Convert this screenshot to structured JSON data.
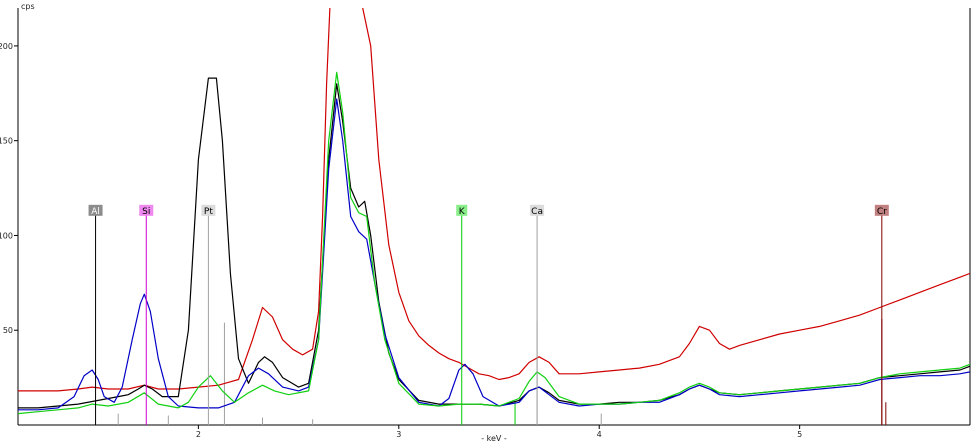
{
  "chart_data": {
    "type": "line",
    "title": "",
    "xlabel": "- keV -",
    "ylabel": "cps",
    "xlim": [
      1.1,
      5.85
    ],
    "ylim": [
      0,
      220
    ],
    "x_ticks": [
      2,
      3,
      4,
      5
    ],
    "y_ticks": [
      50,
      100,
      150,
      200
    ],
    "grid": false,
    "series": [
      {
        "color": "#d00000",
        "points": [
          [
            1.1,
            18
          ],
          [
            1.2,
            18
          ],
          [
            1.3,
            18
          ],
          [
            1.4,
            19
          ],
          [
            1.47,
            20
          ],
          [
            1.55,
            19
          ],
          [
            1.65,
            19
          ],
          [
            1.73,
            21
          ],
          [
            1.8,
            19
          ],
          [
            1.9,
            19
          ],
          [
            2.0,
            20
          ],
          [
            2.1,
            21
          ],
          [
            2.2,
            24
          ],
          [
            2.27,
            45
          ],
          [
            2.32,
            62
          ],
          [
            2.37,
            57
          ],
          [
            2.42,
            45
          ],
          [
            2.47,
            40
          ],
          [
            2.52,
            37
          ],
          [
            2.57,
            40
          ],
          [
            2.6,
            60
          ],
          [
            2.62,
            110
          ],
          [
            2.64,
            180
          ],
          [
            2.66,
            230
          ],
          [
            2.8,
            230
          ],
          [
            2.86,
            200
          ],
          [
            2.9,
            140
          ],
          [
            2.95,
            95
          ],
          [
            3.0,
            70
          ],
          [
            3.05,
            55
          ],
          [
            3.1,
            47
          ],
          [
            3.15,
            42
          ],
          [
            3.2,
            38
          ],
          [
            3.25,
            35
          ],
          [
            3.3,
            33
          ],
          [
            3.35,
            30
          ],
          [
            3.4,
            27
          ],
          [
            3.45,
            26
          ],
          [
            3.5,
            24
          ],
          [
            3.55,
            25
          ],
          [
            3.6,
            27
          ],
          [
            3.65,
            33
          ],
          [
            3.7,
            36
          ],
          [
            3.75,
            33
          ],
          [
            3.8,
            27
          ],
          [
            3.9,
            27
          ],
          [
            4.0,
            28
          ],
          [
            4.1,
            29
          ],
          [
            4.2,
            30
          ],
          [
            4.3,
            32
          ],
          [
            4.4,
            36
          ],
          [
            4.45,
            43
          ],
          [
            4.5,
            52
          ],
          [
            4.55,
            50
          ],
          [
            4.6,
            43
          ],
          [
            4.65,
            40
          ],
          [
            4.7,
            42
          ],
          [
            4.8,
            45
          ],
          [
            4.9,
            48
          ],
          [
            5.0,
            50
          ],
          [
            5.1,
            52
          ],
          [
            5.2,
            55
          ],
          [
            5.3,
            58
          ],
          [
            5.4,
            62
          ],
          [
            5.5,
            66
          ],
          [
            5.6,
            70
          ],
          [
            5.7,
            74
          ],
          [
            5.8,
            78
          ],
          [
            5.85,
            80
          ]
        ]
      },
      {
        "color": "#000000",
        "points": [
          [
            1.1,
            9
          ],
          [
            1.2,
            9
          ],
          [
            1.3,
            10
          ],
          [
            1.4,
            11
          ],
          [
            1.5,
            13
          ],
          [
            1.55,
            14
          ],
          [
            1.6,
            15
          ],
          [
            1.65,
            16
          ],
          [
            1.7,
            19
          ],
          [
            1.73,
            21
          ],
          [
            1.77,
            19
          ],
          [
            1.82,
            15
          ],
          [
            1.9,
            15
          ],
          [
            1.95,
            50
          ],
          [
            2.0,
            140
          ],
          [
            2.05,
            183
          ],
          [
            2.09,
            183
          ],
          [
            2.12,
            150
          ],
          [
            2.16,
            80
          ],
          [
            2.2,
            35
          ],
          [
            2.25,
            22
          ],
          [
            2.3,
            33
          ],
          [
            2.33,
            36
          ],
          [
            2.37,
            33
          ],
          [
            2.42,
            25
          ],
          [
            2.5,
            20
          ],
          [
            2.55,
            22
          ],
          [
            2.6,
            50
          ],
          [
            2.65,
            140
          ],
          [
            2.69,
            180
          ],
          [
            2.72,
            160
          ],
          [
            2.76,
            125
          ],
          [
            2.8,
            115
          ],
          [
            2.83,
            118
          ],
          [
            2.86,
            100
          ],
          [
            2.9,
            65
          ],
          [
            2.95,
            38
          ],
          [
            3.0,
            24
          ],
          [
            3.1,
            13
          ],
          [
            3.2,
            11
          ],
          [
            3.3,
            11
          ],
          [
            3.35,
            11
          ],
          [
            3.4,
            11
          ],
          [
            3.5,
            10
          ],
          [
            3.6,
            13
          ],
          [
            3.65,
            18
          ],
          [
            3.7,
            20
          ],
          [
            3.75,
            17
          ],
          [
            3.8,
            13
          ],
          [
            3.9,
            11
          ],
          [
            4.0,
            11
          ],
          [
            4.1,
            12
          ],
          [
            4.2,
            12
          ],
          [
            4.3,
            13
          ],
          [
            4.4,
            16
          ],
          [
            4.45,
            19
          ],
          [
            4.5,
            21
          ],
          [
            4.55,
            19
          ],
          [
            4.6,
            17
          ],
          [
            4.7,
            16
          ],
          [
            4.8,
            17
          ],
          [
            4.9,
            18
          ],
          [
            5.0,
            19
          ],
          [
            5.1,
            20
          ],
          [
            5.2,
            21
          ],
          [
            5.3,
            22
          ],
          [
            5.4,
            25
          ],
          [
            5.5,
            26
          ],
          [
            5.6,
            27
          ],
          [
            5.7,
            28
          ],
          [
            5.8,
            29
          ],
          [
            5.85,
            31
          ]
        ]
      },
      {
        "color": "#0000c8",
        "points": [
          [
            1.1,
            8
          ],
          [
            1.2,
            8
          ],
          [
            1.3,
            9
          ],
          [
            1.38,
            15
          ],
          [
            1.43,
            26
          ],
          [
            1.47,
            29
          ],
          [
            1.5,
            24
          ],
          [
            1.53,
            15
          ],
          [
            1.58,
            12
          ],
          [
            1.62,
            20
          ],
          [
            1.67,
            45
          ],
          [
            1.71,
            64
          ],
          [
            1.73,
            69
          ],
          [
            1.76,
            60
          ],
          [
            1.8,
            35
          ],
          [
            1.85,
            15
          ],
          [
            1.9,
            10
          ],
          [
            2.0,
            9
          ],
          [
            2.1,
            9
          ],
          [
            2.18,
            12
          ],
          [
            2.25,
            26
          ],
          [
            2.3,
            30
          ],
          [
            2.35,
            27
          ],
          [
            2.42,
            20
          ],
          [
            2.5,
            18
          ],
          [
            2.55,
            20
          ],
          [
            2.6,
            45
          ],
          [
            2.65,
            135
          ],
          [
            2.69,
            172
          ],
          [
            2.72,
            150
          ],
          [
            2.76,
            110
          ],
          [
            2.8,
            102
          ],
          [
            2.84,
            98
          ],
          [
            2.88,
            75
          ],
          [
            2.93,
            48
          ],
          [
            3.0,
            25
          ],
          [
            3.1,
            12
          ],
          [
            3.2,
            10
          ],
          [
            3.25,
            14
          ],
          [
            3.3,
            29
          ],
          [
            3.33,
            32
          ],
          [
            3.37,
            27
          ],
          [
            3.42,
            15
          ],
          [
            3.5,
            10
          ],
          [
            3.6,
            12
          ],
          [
            3.65,
            18
          ],
          [
            3.7,
            20
          ],
          [
            3.75,
            16
          ],
          [
            3.8,
            12
          ],
          [
            3.9,
            10
          ],
          [
            4.0,
            11
          ],
          [
            4.1,
            11
          ],
          [
            4.2,
            12
          ],
          [
            4.3,
            12
          ],
          [
            4.4,
            16
          ],
          [
            4.45,
            19
          ],
          [
            4.5,
            21
          ],
          [
            4.55,
            19
          ],
          [
            4.6,
            16
          ],
          [
            4.7,
            15
          ],
          [
            4.8,
            16
          ],
          [
            4.9,
            17
          ],
          [
            5.0,
            18
          ],
          [
            5.1,
            19
          ],
          [
            5.2,
            20
          ],
          [
            5.3,
            21
          ],
          [
            5.4,
            24
          ],
          [
            5.5,
            25
          ],
          [
            5.6,
            26
          ],
          [
            5.7,
            26
          ],
          [
            5.8,
            27
          ],
          [
            5.85,
            28
          ]
        ]
      },
      {
        "color": "#10d010",
        "points": [
          [
            1.1,
            6
          ],
          [
            1.2,
            7
          ],
          [
            1.3,
            8
          ],
          [
            1.4,
            9
          ],
          [
            1.47,
            11
          ],
          [
            1.55,
            10
          ],
          [
            1.65,
            12
          ],
          [
            1.73,
            17
          ],
          [
            1.8,
            11
          ],
          [
            1.9,
            9
          ],
          [
            1.95,
            12
          ],
          [
            2.0,
            20
          ],
          [
            2.06,
            26
          ],
          [
            2.12,
            18
          ],
          [
            2.18,
            12
          ],
          [
            2.25,
            17
          ],
          [
            2.32,
            21
          ],
          [
            2.38,
            18
          ],
          [
            2.45,
            16
          ],
          [
            2.55,
            18
          ],
          [
            2.6,
            45
          ],
          [
            2.65,
            150
          ],
          [
            2.69,
            186
          ],
          [
            2.72,
            165
          ],
          [
            2.76,
            120
          ],
          [
            2.8,
            112
          ],
          [
            2.84,
            110
          ],
          [
            2.88,
            75
          ],
          [
            2.93,
            45
          ],
          [
            3.0,
            22
          ],
          [
            3.1,
            11
          ],
          [
            3.2,
            10
          ],
          [
            3.3,
            11
          ],
          [
            3.4,
            11
          ],
          [
            3.5,
            10
          ],
          [
            3.6,
            14
          ],
          [
            3.65,
            23
          ],
          [
            3.69,
            28
          ],
          [
            3.73,
            25
          ],
          [
            3.8,
            15
          ],
          [
            3.9,
            11
          ],
          [
            4.0,
            11
          ],
          [
            4.1,
            11
          ],
          [
            4.2,
            12
          ],
          [
            4.3,
            13
          ],
          [
            4.4,
            17
          ],
          [
            4.45,
            20
          ],
          [
            4.5,
            22
          ],
          [
            4.55,
            20
          ],
          [
            4.6,
            17
          ],
          [
            4.7,
            16
          ],
          [
            4.8,
            17
          ],
          [
            4.9,
            18
          ],
          [
            5.0,
            19
          ],
          [
            5.1,
            20
          ],
          [
            5.2,
            21
          ],
          [
            5.3,
            22
          ],
          [
            5.4,
            25
          ],
          [
            5.5,
            27
          ],
          [
            5.6,
            28
          ],
          [
            5.7,
            29
          ],
          [
            5.8,
            30
          ],
          [
            5.85,
            32
          ]
        ]
      }
    ],
    "peak_markers": [
      {
        "label": "Al",
        "x": 1.487,
        "line_color": "#000000",
        "box_fill": "#8c8c8c",
        "text_color": "#ffffff",
        "top": 113
      },
      {
        "label": "Si",
        "x": 1.74,
        "line_color": "#d000d0",
        "box_fill": "#ee88ee",
        "text_color": "#000000",
        "top": 113
      },
      {
        "label": "Pt",
        "x": 2.05,
        "line_color": "#a0a0a0",
        "box_fill": "#dcdcdc",
        "text_color": "#000000",
        "top": 113
      },
      {
        "label": "K",
        "x": 3.314,
        "line_color": "#00cc00",
        "box_fill": "#88ee88",
        "text_color": "#000000",
        "top": 113
      },
      {
        "label": "Ca",
        "x": 3.69,
        "line_color": "#a0a0a0",
        "box_fill": "#dcdcdc",
        "text_color": "#000000",
        "top": 113
      },
      {
        "label": "Cr",
        "x": 5.41,
        "line_color": "#800000",
        "box_fill": "#c08080",
        "text_color": "#000000",
        "top": 113
      }
    ],
    "minor_lines": [
      {
        "x": 1.6,
        "top": 6,
        "color": "#a0a0a0"
      },
      {
        "x": 1.85,
        "top": 5,
        "color": "#a0a0a0"
      },
      {
        "x": 2.13,
        "top": 54,
        "color": "#a0a0a0"
      },
      {
        "x": 2.32,
        "top": 4,
        "color": "#a0a0a0"
      },
      {
        "x": 2.57,
        "top": 3,
        "color": "#a0a0a0"
      },
      {
        "x": 3.58,
        "top": 12,
        "color": "#00cc00"
      },
      {
        "x": 3.69,
        "top": 55,
        "color": "#a0a0a0"
      },
      {
        "x": 4.01,
        "top": 6,
        "color": "#a0a0a0"
      },
      {
        "x": 5.41,
        "top": 56,
        "color": "#800000"
      },
      {
        "x": 5.43,
        "top": 12,
        "color": "#800000"
      }
    ]
  }
}
